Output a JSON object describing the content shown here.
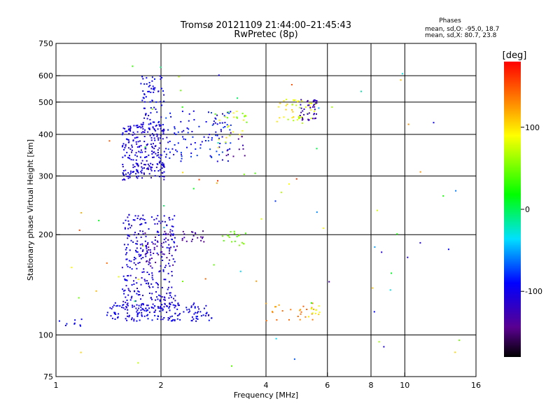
{
  "chart_data": {
    "type": "scatter",
    "title_line1": "Tromsø 20121109 21:44:00–21:45:43",
    "title_line2": "RwPretec (8p)",
    "stats": {
      "heading": "Phases",
      "line_o": "mean, sd,O: -95.0, 18.7",
      "line_x": "mean, sd,X:  80.7, 23.8"
    },
    "xlabel": "Frequency [MHz]",
    "ylabel": "Stationary phase Virtual Height [km]",
    "x_scale": "log",
    "y_scale": "log",
    "xlim": [
      1,
      16
    ],
    "ylim": [
      75,
      750
    ],
    "x_ticks": [
      1,
      2,
      4,
      6,
      8,
      10,
      16
    ],
    "y_ticks": [
      75,
      100,
      200,
      300,
      400,
      500,
      600,
      750
    ],
    "grid_x": [
      2,
      4,
      6,
      8,
      10
    ],
    "grid_y": [
      100,
      200,
      300,
      400,
      500,
      600
    ],
    "colorbar": {
      "label": "[deg]",
      "range": [
        -180,
        180
      ],
      "ticks": [
        100,
        0,
        -100
      ],
      "colormap": "rainbow (black-purple-blue-cyan-green-yellow-orange-red)"
    },
    "clusters": [
      {
        "f": [
          1.55,
          2.05
        ],
        "h": [
          290,
          430
        ],
        "phase": [
          -115,
          -90
        ],
        "n": 260
      },
      {
        "f": [
          1.75,
          2.05
        ],
        "h": [
          420,
          600
        ],
        "phase": [
          -110,
          -85
        ],
        "n": 70
      },
      {
        "f": [
          2.05,
          3.2
        ],
        "h": [
          330,
          470
        ],
        "phase": [
          -110,
          -70
        ],
        "n": 110
      },
      {
        "f": [
          2.9,
          3.6
        ],
        "h": [
          360,
          470
        ],
        "phase": [
          40,
          110
        ],
        "n": 25
      },
      {
        "f": [
          3.0,
          3.5
        ],
        "h": [
          340,
          420
        ],
        "phase": [
          -150,
          -120
        ],
        "n": 12
      },
      {
        "f": [
          4.3,
          5.6
        ],
        "h": [
          430,
          510
        ],
        "phase": [
          60,
          110
        ],
        "n": 45
      },
      {
        "f": [
          5.0,
          5.6
        ],
        "h": [
          440,
          510
        ],
        "phase": [
          -135,
          -110
        ],
        "n": 40
      },
      {
        "f": [
          1.55,
          2.2
        ],
        "h": [
          120,
          230
        ],
        "phase": [
          -115,
          -90
        ],
        "n": 300
      },
      {
        "f": [
          1.8,
          2.25
        ],
        "h": [
          160,
          205
        ],
        "phase": [
          -150,
          -125
        ],
        "n": 40
      },
      {
        "f": [
          2.3,
          2.7
        ],
        "h": [
          190,
          205
        ],
        "phase": [
          -145,
          -125
        ],
        "n": 20
      },
      {
        "f": [
          3.0,
          3.5
        ],
        "h": [
          185,
          205
        ],
        "phase": [
          35,
          60
        ],
        "n": 18
      },
      {
        "f": [
          1.4,
          2.8
        ],
        "h": [
          110,
          125
        ],
        "phase": [
          -110,
          -85
        ],
        "n": 170
      },
      {
        "f": [
          4.0,
          5.5
        ],
        "h": [
          110,
          125
        ],
        "phase": [
          120,
          150
        ],
        "n": 25
      },
      {
        "f": [
          5.2,
          5.7
        ],
        "h": [
          112,
          125
        ],
        "phase": [
          80,
          110
        ],
        "n": 10
      },
      {
        "f": [
          1.0,
          1.2
        ],
        "h": [
          105,
          112
        ],
        "phase": [
          -105,
          -85
        ],
        "n": 10
      },
      {
        "f": [
          1.0,
          15.0
        ],
        "h": [
          80,
          650
        ],
        "phase": [
          -130,
          160
        ],
        "n": 80
      }
    ]
  }
}
